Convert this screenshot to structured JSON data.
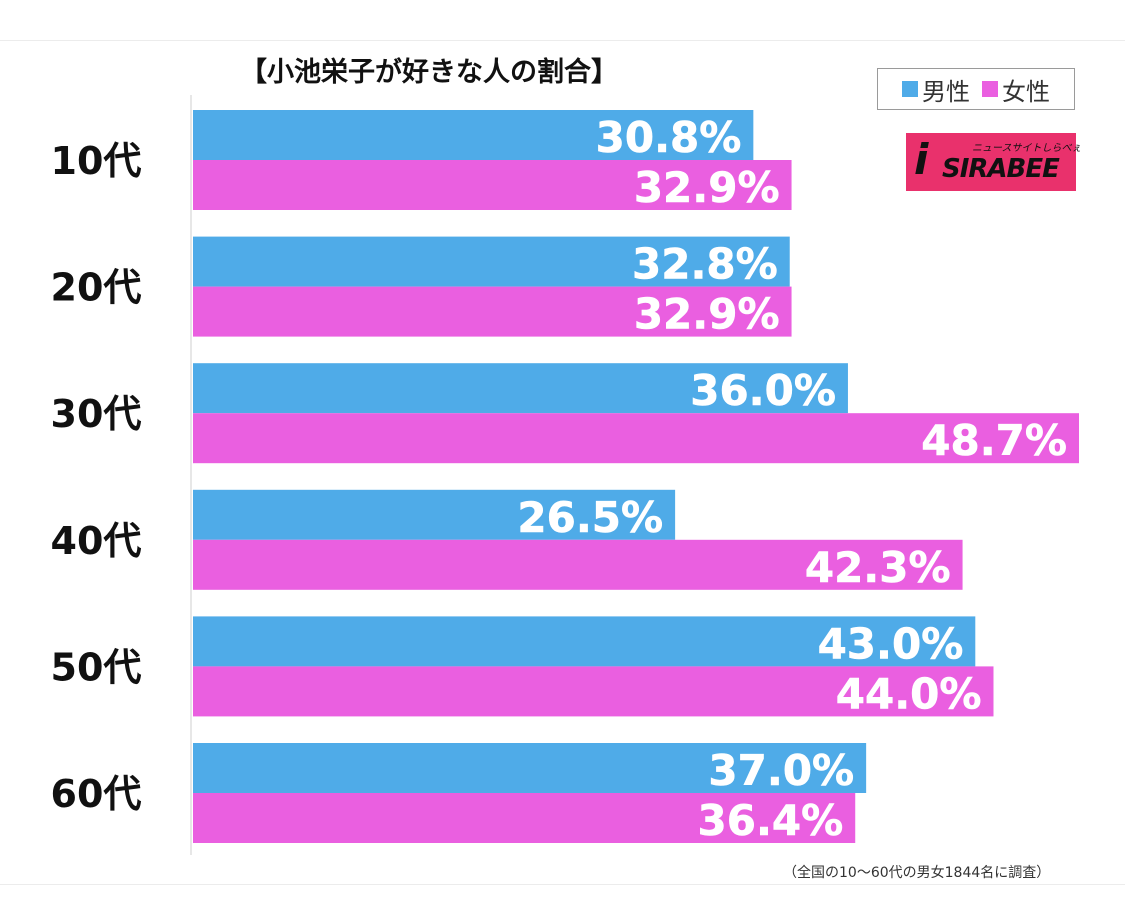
{
  "chart_data": {
    "type": "bar",
    "orientation": "horizontal",
    "title": "【小池栄子が好きな人の割合】",
    "categories": [
      "10代",
      "20代",
      "30代",
      "40代",
      "50代",
      "60代"
    ],
    "series": [
      {
        "name": "男性",
        "color": "#4fabe8",
        "values": [
          30.8,
          32.8,
          36.0,
          26.5,
          43.0,
          37.0
        ]
      },
      {
        "name": "女性",
        "color": "#ea5fe0",
        "values": [
          32.9,
          32.9,
          48.7,
          42.3,
          44.0,
          36.4
        ]
      }
    ],
    "value_suffix": "%",
    "xlim": [
      0,
      49
    ],
    "grid": false,
    "legend_position": "top-right",
    "footnote": "（全国の10～60代の男女1844名に調査）"
  },
  "logo": {
    "text": "SIRABEE",
    "subtext": "ニュースサイトしらべぇ",
    "color": "#e9316c"
  }
}
